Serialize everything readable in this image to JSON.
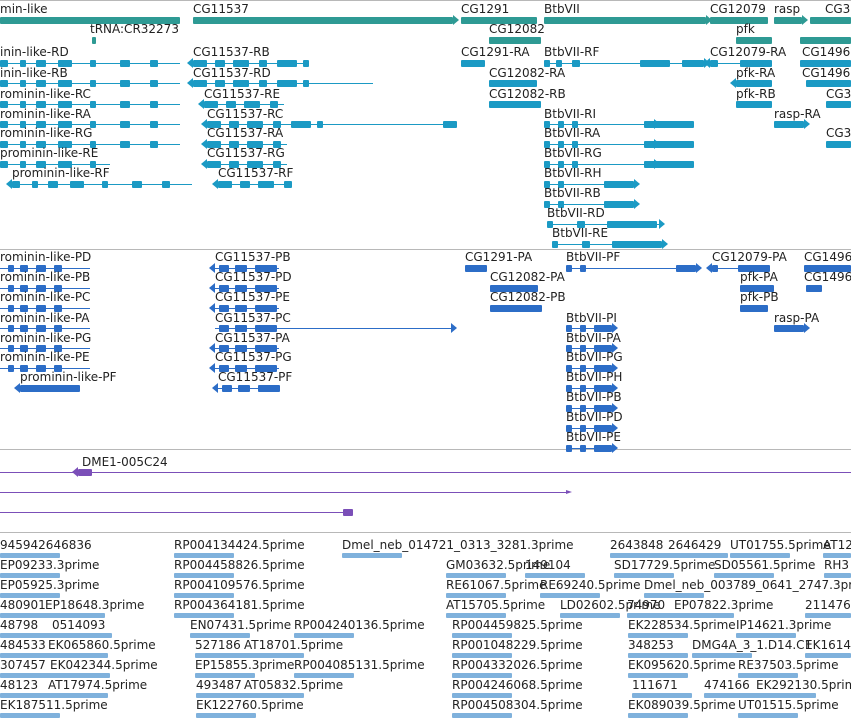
{
  "colors": {
    "gene": "#2e9a94",
    "transcript": "#1b9ac4",
    "protein": "#2c6dc7",
    "cdna": "#7b4fb8",
    "est": "#7fb1dc",
    "divider": "#b8b8b8"
  },
  "tracks": {
    "genes": [
      {
        "label": "min-like"
      },
      {
        "label": "CG11537"
      },
      {
        "label": "CG1291"
      },
      {
        "label": "BtbVII"
      },
      {
        "label": "CG12079"
      },
      {
        "label": "rasp"
      },
      {
        "label": "CG3"
      },
      {
        "label": "tRNA:CR32273"
      },
      {
        "label": "CG12082"
      },
      {
        "label": "pfk"
      }
    ],
    "transcripts": [
      {
        "label": "inin-like-RD"
      },
      {
        "label": "inin-like-RB"
      },
      {
        "label": "rominin-like-RC"
      },
      {
        "label": "rominin-like-RA"
      },
      {
        "label": "rominin-like-RG"
      },
      {
        "label": "prominin-like-RE"
      },
      {
        "label": "prominin-like-RF"
      },
      {
        "label": "CG11537-RB"
      },
      {
        "label": "CG11537-RD"
      },
      {
        "label": "CG11537-RE"
      },
      {
        "label": "CG11537-RC"
      },
      {
        "label": "CG11537-RA"
      },
      {
        "label": "CG11537-RG"
      },
      {
        "label": "CG11537-RF"
      },
      {
        "label": "CG1291-RA"
      },
      {
        "label": "CG12082-RA"
      },
      {
        "label": "CG12082-RB"
      },
      {
        "label": "BtbVII-RF"
      },
      {
        "label": "BtbVII-RI"
      },
      {
        "label": "BtbVII-RA"
      },
      {
        "label": "BtbVII-RG"
      },
      {
        "label": "BtbVII-RH"
      },
      {
        "label": "BtbVII-RB"
      },
      {
        "label": "BtbVII-RD"
      },
      {
        "label": "BtbVII-RE"
      },
      {
        "label": "CG12079-RA"
      },
      {
        "label": "pfk-RA"
      },
      {
        "label": "pfk-RB"
      },
      {
        "label": "rasp-RA"
      },
      {
        "label": "CG1496"
      },
      {
        "label": "CG1496"
      },
      {
        "label": "CG3"
      },
      {
        "label": "CG3"
      }
    ],
    "proteins": [
      {
        "label": "rominin-like-PD"
      },
      {
        "label": "rominin-like-PB"
      },
      {
        "label": "rominin-like-PC"
      },
      {
        "label": "rominin-like-PA"
      },
      {
        "label": "rominin-like-PG"
      },
      {
        "label": "rominin-like-PE"
      },
      {
        "label": "prominin-like-PF"
      },
      {
        "label": "CG11537-PB"
      },
      {
        "label": "CG11537-PD"
      },
      {
        "label": "CG11537-PE"
      },
      {
        "label": "CG11537-PC"
      },
      {
        "label": "CG11537-PA"
      },
      {
        "label": "CG11537-PG"
      },
      {
        "label": "CG11537-PF"
      },
      {
        "label": "CG1291-PA"
      },
      {
        "label": "CG12082-PA"
      },
      {
        "label": "CG12082-PB"
      },
      {
        "label": "BtbVII-PF"
      },
      {
        "label": "BtbVII-PI"
      },
      {
        "label": "BtbVII-PA"
      },
      {
        "label": "BtbVII-PG"
      },
      {
        "label": "BtbVII-PH"
      },
      {
        "label": "BtbVII-PB"
      },
      {
        "label": "BtbVII-PD"
      },
      {
        "label": "BtbVII-PE"
      },
      {
        "label": "CG12079-PA"
      },
      {
        "label": "pfk-PA"
      },
      {
        "label": "pfk-PB"
      },
      {
        "label": "rasp-PA"
      },
      {
        "label": "CG1496"
      },
      {
        "label": "CG1496"
      }
    ],
    "cdna": [
      {
        "label": "DME1-005C24"
      }
    ],
    "est": [
      {
        "label": "945942646836"
      },
      {
        "label": "RP004134424.5prime"
      },
      {
        "label": "Dmel_neb_014721_0313_3281.3prime"
      },
      {
        "label": "2643848"
      },
      {
        "label": "2646429"
      },
      {
        "label": "UT01755.5prime"
      },
      {
        "label": "AT12"
      },
      {
        "label": "EP09233.3prime"
      },
      {
        "label": "RP004458826.5prime"
      },
      {
        "label": "GM03632.5prime"
      },
      {
        "label": "149104"
      },
      {
        "label": "SD17729.5prime"
      },
      {
        "label": "SD05561.5prime"
      },
      {
        "label": "RH3"
      },
      {
        "label": "EP05925.3prime"
      },
      {
        "label": "RP004109576.5prime"
      },
      {
        "label": "RE61067.5prime"
      },
      {
        "label": "RE69240.5prime"
      },
      {
        "label": "Dmel_neb_003789_0641_2747.3prime"
      },
      {
        "label": "480901"
      },
      {
        "label": "EP18648.3prime"
      },
      {
        "label": "RP004364181.5prime"
      },
      {
        "label": "AT15705.5prime"
      },
      {
        "label": "LD02602.5prime"
      },
      {
        "label": "74970"
      },
      {
        "label": "EP07822.3prime"
      },
      {
        "label": "211476"
      },
      {
        "label": "48798"
      },
      {
        "label": "0514093"
      },
      {
        "label": "EN07431.5prime"
      },
      {
        "label": "RP004240136.5prime"
      },
      {
        "label": "RP004459825.5prime"
      },
      {
        "label": "EK228534.5prime"
      },
      {
        "label": "IP14621.3prime"
      },
      {
        "label": "484533"
      },
      {
        "label": "EK065860.5prime"
      },
      {
        "label": "527186"
      },
      {
        "label": "AT18701.5prime"
      },
      {
        "label": "RP001048229.5prime"
      },
      {
        "label": "348253"
      },
      {
        "label": "DMG4A_3_1.D14.C1"
      },
      {
        "label": "EK1614"
      },
      {
        "label": "307457"
      },
      {
        "label": "EK042344.5prime"
      },
      {
        "label": "EP15855.3prime"
      },
      {
        "label": "RP004085131.5prime"
      },
      {
        "label": "RP004332026.5prime"
      },
      {
        "label": "EK095620.5prime"
      },
      {
        "label": "RE37503.5prime"
      },
      {
        "label": "48123"
      },
      {
        "label": "AT17974.5prime"
      },
      {
        "label": "493487"
      },
      {
        "label": "AT05832.5prime"
      },
      {
        "label": "RP004246068.5prime"
      },
      {
        "label": "111671"
      },
      {
        "label": "474166"
      },
      {
        "label": "EK292130.5prime"
      },
      {
        "label": "EK187511.5prime"
      },
      {
        "label": "EK122760.5prime"
      },
      {
        "label": "RP004508304.5prime"
      },
      {
        "label": "EK089039.5prime"
      },
      {
        "label": "UT01515.5prime"
      }
    ]
  }
}
